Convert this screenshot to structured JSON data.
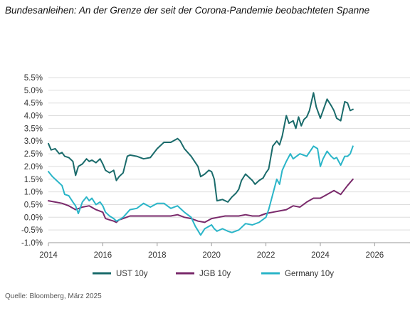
{
  "title": "Bundesanleihen: An der Grenze der seit der Corona-Pandemie beobachteten Spanne",
  "source": "Quelle: Bloomberg, März 2025",
  "chart_data": {
    "type": "line",
    "ylim": [
      -1.0,
      5.5
    ],
    "xlim": [
      2014,
      2027.3
    ],
    "y_ticks": [
      -1.0,
      -0.5,
      0.0,
      0.5,
      1.0,
      1.5,
      2.0,
      2.5,
      3.0,
      3.5,
      4.0,
      4.5,
      5.0,
      5.5
    ],
    "y_tick_labels": [
      "-1.0%",
      "-0.5%",
      "0.0%",
      "0.5%",
      "1.0%",
      "1.5%",
      "2.0%",
      "2.5%",
      "3.0%",
      "3.5%",
      "4.0%",
      "4.5%",
      "5.0%",
      "5.5%"
    ],
    "x_ticks": [
      2014,
      2016,
      2018,
      2020,
      2022,
      2024,
      2026
    ],
    "x_tick_labels": [
      "2014",
      "2016",
      "2018",
      "2020",
      "2022",
      "2024",
      "2026"
    ],
    "grid": true,
    "legend_position": "bottom",
    "series": [
      {
        "name": "UST 10y",
        "color": "#1a6b6b",
        "x": [
          2014.0,
          2014.1,
          2014.25,
          2014.4,
          2014.5,
          2014.6,
          2014.75,
          2014.9,
          2015.0,
          2015.1,
          2015.25,
          2015.4,
          2015.5,
          2015.6,
          2015.75,
          2015.9,
          2016.0,
          2016.1,
          2016.25,
          2016.4,
          2016.5,
          2016.6,
          2016.75,
          2016.9,
          2017.0,
          2017.25,
          2017.5,
          2017.75,
          2018.0,
          2018.25,
          2018.5,
          2018.75,
          2018.85,
          2019.0,
          2019.25,
          2019.5,
          2019.6,
          2019.75,
          2019.9,
          2020.0,
          2020.1,
          2020.2,
          2020.4,
          2020.6,
          2020.75,
          2020.9,
          2021.0,
          2021.1,
          2021.25,
          2021.5,
          2021.6,
          2021.75,
          2021.9,
          2022.0,
          2022.1,
          2022.25,
          2022.4,
          2022.5,
          2022.6,
          2022.75,
          2022.85,
          2023.0,
          2023.1,
          2023.2,
          2023.3,
          2023.4,
          2023.5,
          2023.6,
          2023.75,
          2023.85,
          2024.0,
          2024.1,
          2024.25,
          2024.4,
          2024.5,
          2024.6,
          2024.75,
          2024.9,
          2025.0,
          2025.1,
          2025.2
        ],
        "values": [
          2.9,
          2.65,
          2.7,
          2.5,
          2.55,
          2.4,
          2.35,
          2.2,
          1.65,
          2.0,
          2.1,
          2.3,
          2.2,
          2.25,
          2.15,
          2.3,
          2.1,
          1.85,
          1.75,
          1.85,
          1.45,
          1.6,
          1.75,
          2.4,
          2.45,
          2.4,
          2.3,
          2.35,
          2.7,
          2.95,
          2.95,
          3.1,
          3.0,
          2.7,
          2.4,
          2.0,
          1.6,
          1.7,
          1.85,
          1.8,
          1.5,
          0.65,
          0.7,
          0.6,
          0.8,
          0.95,
          1.1,
          1.45,
          1.7,
          1.45,
          1.3,
          1.45,
          1.55,
          1.75,
          1.9,
          2.8,
          3.0,
          2.85,
          3.2,
          4.0,
          3.7,
          3.8,
          3.5,
          3.95,
          3.6,
          3.85,
          3.95,
          4.2,
          4.9,
          4.35,
          3.9,
          4.2,
          4.65,
          4.4,
          4.2,
          3.9,
          3.8,
          4.55,
          4.5,
          4.2,
          4.25
        ]
      },
      {
        "name": "JGB 10y",
        "color": "#7a2a6b",
        "x": [
          2014.0,
          2014.25,
          2014.5,
          2014.75,
          2015.0,
          2015.25,
          2015.5,
          2015.75,
          2016.0,
          2016.1,
          2016.25,
          2016.4,
          2016.5,
          2016.6,
          2016.75,
          2017.0,
          2017.5,
          2018.0,
          2018.5,
          2018.75,
          2019.0,
          2019.25,
          2019.5,
          2019.75,
          2020.0,
          2020.25,
          2020.5,
          2020.75,
          2021.0,
          2021.25,
          2021.5,
          2021.75,
          2022.0,
          2022.25,
          2022.5,
          2022.75,
          2023.0,
          2023.25,
          2023.5,
          2023.75,
          2024.0,
          2024.25,
          2024.5,
          2024.75,
          2025.0,
          2025.2
        ],
        "values": [
          0.65,
          0.6,
          0.55,
          0.45,
          0.3,
          0.4,
          0.45,
          0.3,
          0.2,
          -0.05,
          -0.1,
          -0.15,
          -0.2,
          -0.1,
          -0.05,
          0.05,
          0.05,
          0.05,
          0.05,
          0.1,
          0.0,
          -0.05,
          -0.15,
          -0.2,
          -0.05,
          0.0,
          0.05,
          0.05,
          0.05,
          0.1,
          0.05,
          0.05,
          0.15,
          0.2,
          0.25,
          0.3,
          0.45,
          0.4,
          0.6,
          0.75,
          0.75,
          0.9,
          1.05,
          0.9,
          1.25,
          1.5
        ]
      },
      {
        "name": "Germany 10y",
        "color": "#2ab5c8",
        "x": [
          2014.0,
          2014.15,
          2014.3,
          2014.5,
          2014.6,
          2014.75,
          2014.9,
          2015.0,
          2015.1,
          2015.25,
          2015.4,
          2015.5,
          2015.6,
          2015.75,
          2015.9,
          2016.0,
          2016.1,
          2016.25,
          2016.4,
          2016.5,
          2016.6,
          2016.75,
          2017.0,
          2017.25,
          2017.5,
          2017.75,
          2018.0,
          2018.25,
          2018.5,
          2018.75,
          2019.0,
          2019.25,
          2019.4,
          2019.6,
          2019.75,
          2020.0,
          2020.1,
          2020.2,
          2020.4,
          2020.6,
          2020.75,
          2021.0,
          2021.25,
          2021.5,
          2021.75,
          2022.0,
          2022.1,
          2022.25,
          2022.4,
          2022.5,
          2022.6,
          2022.75,
          2022.9,
          2023.0,
          2023.25,
          2023.5,
          2023.75,
          2023.9,
          2024.0,
          2024.1,
          2024.25,
          2024.4,
          2024.5,
          2024.6,
          2024.75,
          2024.9,
          2025.0,
          2025.1,
          2025.2
        ],
        "values": [
          1.8,
          1.6,
          1.45,
          1.25,
          0.9,
          0.85,
          0.6,
          0.45,
          0.15,
          0.6,
          0.8,
          0.65,
          0.75,
          0.5,
          0.6,
          0.45,
          0.2,
          0.05,
          -0.05,
          -0.15,
          -0.1,
          0.0,
          0.3,
          0.35,
          0.55,
          0.4,
          0.55,
          0.55,
          0.35,
          0.45,
          0.2,
          0.0,
          -0.35,
          -0.7,
          -0.45,
          -0.3,
          -0.45,
          -0.55,
          -0.45,
          -0.55,
          -0.6,
          -0.5,
          -0.25,
          -0.3,
          -0.2,
          0.0,
          0.3,
          0.9,
          1.5,
          1.3,
          1.85,
          2.2,
          2.5,
          2.3,
          2.5,
          2.4,
          2.8,
          2.7,
          2.0,
          2.3,
          2.6,
          2.4,
          2.3,
          2.35,
          2.05,
          2.4,
          2.4,
          2.5,
          2.8
        ]
      }
    ]
  }
}
